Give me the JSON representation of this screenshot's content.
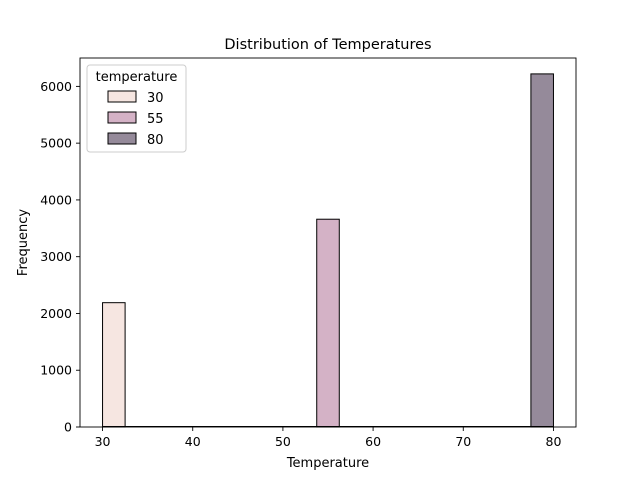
{
  "chart_data": {
    "type": "bar",
    "title": "Distribution of Temperatures",
    "xlabel": "Temperature",
    "ylabel": "Frequency",
    "xlim": [
      27.5,
      82.5
    ],
    "ylim": [
      0,
      6500
    ],
    "xticks": [
      30,
      40,
      50,
      60,
      70,
      80
    ],
    "yticks": [
      0,
      1000,
      2000,
      3000,
      4000,
      5000,
      6000
    ],
    "bin_width": 2.5,
    "legend": {
      "title": "temperature",
      "placement": "upper-left",
      "entries": [
        "30",
        "55",
        "80"
      ]
    },
    "series": [
      {
        "name": "30",
        "color": "#f6e6e1",
        "bins": [
          {
            "x_start": 30,
            "x_end": 32.5,
            "count": 2190
          }
        ]
      },
      {
        "name": "55",
        "color": "#d4b2c6",
        "bins": [
          {
            "x_start": 53.75,
            "x_end": 56.25,
            "count": 3660
          }
        ]
      },
      {
        "name": "80",
        "color": "#958a9a",
        "bins": [
          {
            "x_start": 77.5,
            "x_end": 80,
            "count": 6220
          }
        ]
      }
    ],
    "grid": false
  }
}
